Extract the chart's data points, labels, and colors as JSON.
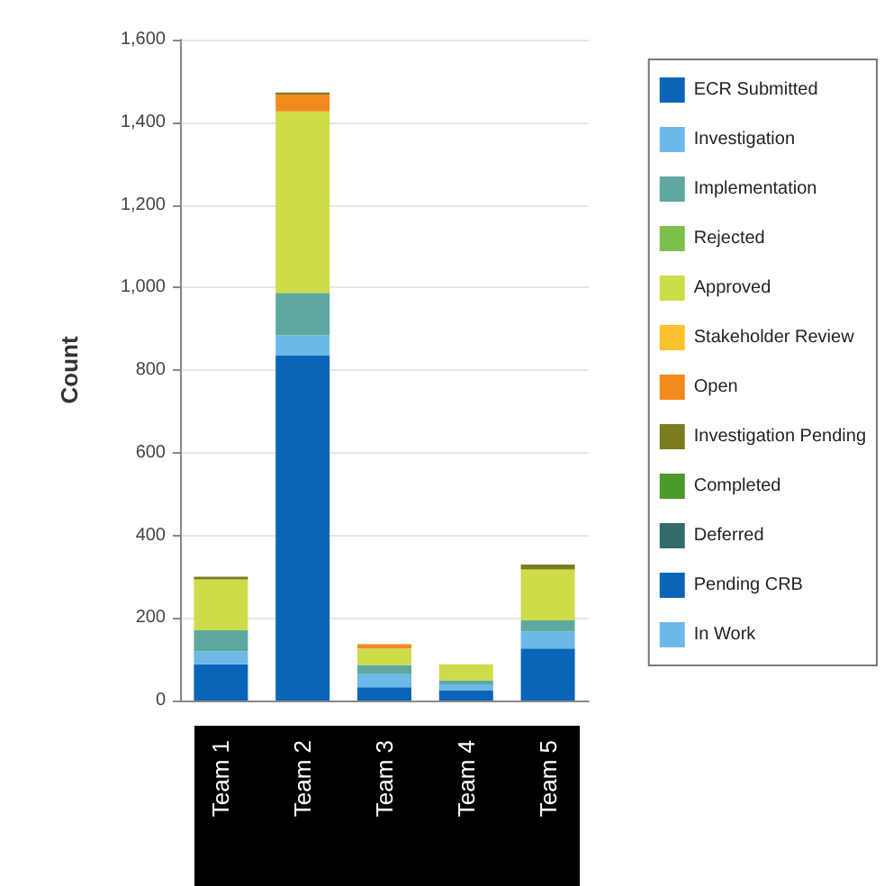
{
  "chart_data": {
    "type": "bar",
    "stacked": true,
    "ylabel": "Count",
    "categories": [
      "Team 1",
      "Team 2",
      "Team 3",
      "Team 4",
      "Team 5"
    ],
    "ylim": [
      0,
      1600
    ],
    "yticks": [
      0,
      {
        "value": 200,
        "label": "200"
      },
      {
        "value": 400,
        "label": "400"
      },
      {
        "value": 600,
        "label": "600"
      },
      {
        "value": 800,
        "label": "800"
      },
      {
        "value": 1000,
        "label": "1,000"
      },
      {
        "value": 1200,
        "label": "1,200"
      },
      {
        "value": 1400,
        "label": "1,400"
      },
      {
        "value": 1600,
        "label": "1,600"
      }
    ],
    "grid": "y",
    "legend": "right",
    "series": [
      {
        "name": "ECR Submitted",
        "color": "#0a65b8",
        "values": [
          88,
          836,
          32,
          25,
          126
        ]
      },
      {
        "name": "Investigation",
        "color": "#6cb8e8",
        "values": [
          31,
          48,
          32,
          14,
          41
        ]
      },
      {
        "name": "Implementation",
        "color": "#5fa8a0",
        "values": [
          51,
          103,
          22,
          10,
          27
        ]
      },
      {
        "name": "Rejected",
        "color": "#7cc04c",
        "values": [
          null,
          null,
          null,
          null,
          null
        ]
      },
      {
        "name": "Approved",
        "color": "#cfdc4a",
        "values": [
          123,
          439,
          40,
          39,
          123
        ]
      },
      {
        "name": "Stakeholder Review",
        "color": "#fcc22e",
        "values": [
          null,
          null,
          null,
          null,
          null
        ]
      },
      {
        "name": "Open",
        "color": "#f28a1e",
        "values": [
          null,
          41,
          10,
          null,
          null
        ]
      },
      {
        "name": "Investigation Pending",
        "color": "#7a7d1e",
        "values": [
          7,
          5,
          null,
          null,
          12
        ]
      },
      {
        "name": "Completed",
        "color": "#4a9a2c",
        "values": [
          null,
          null,
          null,
          null,
          null
        ]
      },
      {
        "name": "Deferred",
        "color": "#356a6a",
        "values": [
          null,
          null,
          null,
          null,
          null
        ]
      },
      {
        "name": "Pending CRB",
        "color": "#0a65b8",
        "values": [
          null,
          null,
          null,
          null,
          null
        ]
      },
      {
        "name": "In Work",
        "color": "#6cb8e8",
        "values": [
          null,
          null,
          null,
          null,
          null
        ]
      }
    ]
  }
}
